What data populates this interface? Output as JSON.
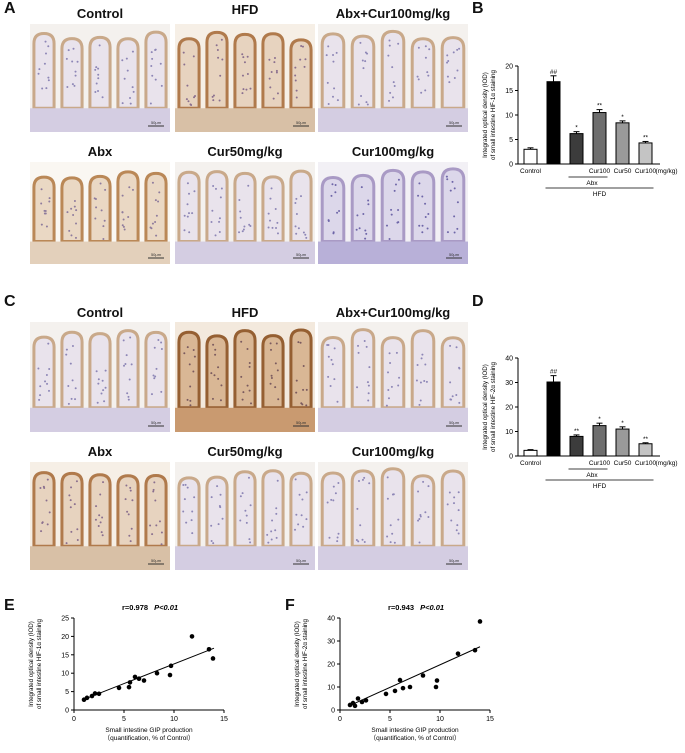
{
  "panels": {
    "A": {
      "letter": "A",
      "images": [
        {
          "title": "Control",
          "scale": "50μm",
          "stain": "light"
        },
        {
          "title": "HFD",
          "scale": "50μm",
          "stain": "brown"
        },
        {
          "title": "Abx+Cur100mg/kg",
          "scale": "50μm",
          "stain": "light"
        },
        {
          "title": "Abx",
          "scale": "50μm",
          "stain": "brown-light"
        },
        {
          "title": "Cur50mg/kg",
          "scale": "50μm",
          "stain": "light"
        },
        {
          "title": "Cur100mg/kg",
          "scale": "50μm",
          "stain": "blue"
        }
      ]
    },
    "C": {
      "letter": "C",
      "images": [
        {
          "title": "Control",
          "scale": "50μm",
          "stain": "light"
        },
        {
          "title": "HFD",
          "scale": "50μm",
          "stain": "dark-brown"
        },
        {
          "title": "Abx+Cur100mg/kg",
          "scale": "50μm",
          "stain": "light"
        },
        {
          "title": "Abx",
          "scale": "50μm",
          "stain": "brown"
        },
        {
          "title": "Cur50mg/kg",
          "scale": "50μm",
          "stain": "light"
        },
        {
          "title": "Cur100mg/kg",
          "scale": "50μm",
          "stain": "light"
        }
      ]
    },
    "B_letter": "B",
    "D_letter": "D",
    "E_letter": "E",
    "F_letter": "F"
  },
  "chart_data": [
    {
      "id": "B",
      "type": "bar",
      "ylabel": "Integrated optical density (IOD) of small intestine HIF-1α staining",
      "ylim": [
        0,
        20
      ],
      "yticks": [
        0,
        5,
        10,
        15,
        20
      ],
      "categories": [
        "Control",
        "HFD",
        "Abx",
        "Cur100",
        "Cur50",
        "Cur100"
      ],
      "values": [
        3.0,
        16.8,
        6.2,
        10.5,
        8.4,
        4.3
      ],
      "errors": [
        0.3,
        1.2,
        0.4,
        0.6,
        0.4,
        0.3
      ],
      "fills": [
        "#ffffff",
        "#000000",
        "#3c3c3c",
        "#6e6e6e",
        "#9a9a9a",
        "#c4c4c4"
      ],
      "annotations": [
        "",
        "##",
        "*",
        "**",
        "*",
        "**"
      ],
      "xtick_labels": [
        "Control",
        "",
        "",
        "Cur100",
        "Cur50",
        "Cur100"
      ],
      "unit_label": "(mg/kg)",
      "bracket_abx": "Abx",
      "bracket_hfd": "HFD"
    },
    {
      "id": "D",
      "type": "bar",
      "ylabel": "Integrated optical density (IOD) of small intestine HIF-2α staining",
      "ylim": [
        0,
        40
      ],
      "yticks": [
        0,
        10,
        20,
        30,
        40
      ],
      "categories": [
        "Control",
        "HFD",
        "Abx",
        "Cur100",
        "Cur50",
        "Cur100"
      ],
      "values": [
        2.3,
        30.2,
        8.0,
        12.4,
        11.0,
        5.0
      ],
      "errors": [
        0.3,
        2.6,
        0.6,
        1.0,
        0.9,
        0.4
      ],
      "fills": [
        "#ffffff",
        "#000000",
        "#3c3c3c",
        "#6e6e6e",
        "#9a9a9a",
        "#c4c4c4"
      ],
      "annotations": [
        "",
        "##",
        "**",
        "*",
        "*",
        "**"
      ],
      "xtick_labels": [
        "Control",
        "",
        "",
        "Cur100",
        "Cur50",
        "Cur100"
      ],
      "unit_label": "(mg/kg)",
      "bracket_abx": "Abx",
      "bracket_hfd": "HFD"
    },
    {
      "id": "E",
      "type": "scatter",
      "annotation_r": "r=0.978",
      "annotation_p": "P<0.01",
      "xlabel_line1": "Small intestine GIP production",
      "xlabel_line2": "（quantification, % of Control）",
      "ylabel": "Integrated optical density (IOD) of small intestine HIF-1α staining",
      "xlim": [
        0,
        15
      ],
      "xticks": [
        0,
        5,
        10,
        15
      ],
      "ylim": [
        0,
        25
      ],
      "yticks": [
        0,
        5,
        10,
        15,
        20,
        25
      ],
      "points": [
        [
          1.0,
          2.8
        ],
        [
          1.3,
          3.3
        ],
        [
          1.8,
          3.8
        ],
        [
          2.1,
          4.5
        ],
        [
          2.5,
          4.4
        ],
        [
          4.5,
          6.0
        ],
        [
          5.5,
          6.2
        ],
        [
          5.6,
          7.5
        ],
        [
          6.1,
          9.0
        ],
        [
          6.5,
          8.5
        ],
        [
          7.0,
          8.0
        ],
        [
          8.3,
          10.0
        ],
        [
          9.6,
          9.5
        ],
        [
          9.7,
          12.0
        ],
        [
          11.8,
          20.0
        ],
        [
          13.5,
          16.5
        ],
        [
          13.9,
          14.0
        ]
      ],
      "fit": [
        [
          1.0,
          2.9
        ],
        [
          14.0,
          16.8
        ]
      ]
    },
    {
      "id": "F",
      "type": "scatter",
      "annotation_r": "r=0.943",
      "annotation_p": "P<0.01",
      "xlabel_line1": "Small intestine GIP production",
      "xlabel_line2": "（quantification, % of Control）",
      "ylabel": "Integrated optical density (IOD) of small intestine HIF-2α staining",
      "xlim": [
        0,
        15
      ],
      "xticks": [
        0,
        5,
        10,
        15
      ],
      "ylim": [
        0,
        40
      ],
      "yticks": [
        0,
        10,
        20,
        30,
        40
      ],
      "points": [
        [
          1.0,
          2.2
        ],
        [
          1.3,
          3.0
        ],
        [
          1.5,
          1.8
        ],
        [
          1.8,
          5.0
        ],
        [
          2.2,
          3.5
        ],
        [
          2.6,
          4.2
        ],
        [
          4.6,
          7.0
        ],
        [
          5.5,
          8.3
        ],
        [
          6.0,
          13.0
        ],
        [
          6.3,
          9.5
        ],
        [
          7.0,
          10.0
        ],
        [
          8.3,
          15.0
        ],
        [
          9.6,
          10.0
        ],
        [
          9.7,
          12.8
        ],
        [
          11.8,
          24.5
        ],
        [
          13.5,
          26.0
        ],
        [
          14.0,
          38.5
        ]
      ],
      "fit": [
        [
          1.0,
          2.0
        ],
        [
          14.0,
          27.5
        ]
      ]
    }
  ]
}
